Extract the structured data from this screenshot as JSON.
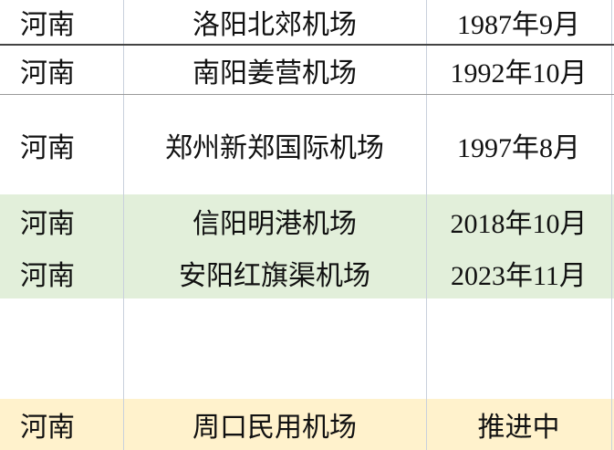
{
  "table": {
    "rows": [
      [
        "河南",
        "洛阳北郊机场",
        "1987年9月"
      ],
      [
        "河南",
        "南阳姜营机场",
        "1992年10月"
      ],
      [
        "河南",
        "郑州新郑国际机场",
        "1997年8月"
      ],
      [
        "河南",
        "信阳明港机场",
        "2018年10月"
      ],
      [
        "河南",
        "安阳红旗渠机场",
        "2023年11月"
      ],
      [
        "河南",
        "周口民用机场",
        "推进中"
      ]
    ]
  }
}
